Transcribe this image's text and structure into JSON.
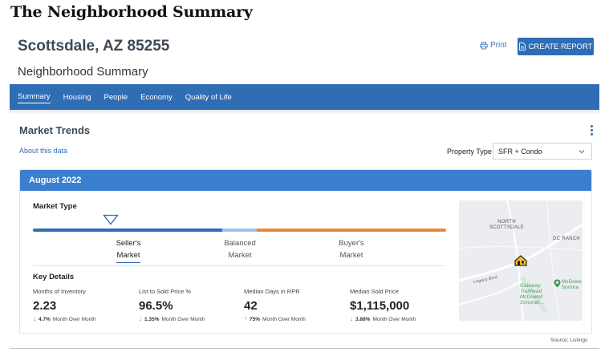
{
  "page": {
    "heading": "The Neighborhood Summary"
  },
  "header": {
    "location": "Scottsdale, AZ 85255",
    "print_label": "Print",
    "create_report_label": "CREATE REPORT",
    "subtitle": "Neighborhood Summary"
  },
  "nav": {
    "items": [
      "Summary",
      "Housing",
      "People",
      "Economy",
      "Quality of Life"
    ],
    "active": "Summary"
  },
  "market_trends": {
    "title": "Market Trends",
    "about_link": "About this data",
    "property_type_label": "Property Type",
    "property_type_value": "SFR + Condo"
  },
  "card": {
    "month": "August 2022",
    "market_type_label": "Market Type",
    "market_labels": {
      "sellers_line1": "Seller's",
      "sellers_line2": "Market",
      "balanced_line1": "Balanced",
      "balanced_line2": "Market",
      "buyers_line1": "Buyer's",
      "buyers_line2": "Market"
    },
    "selected_market": "Seller's Market",
    "key_details_label": "Key Details",
    "stats": [
      {
        "label": "Months of Inventory",
        "value": "2.23",
        "direction": "down",
        "change": "4.7%",
        "period": "Month Over Month"
      },
      {
        "label": "List to Sold Price %",
        "value": "96.5%",
        "direction": "down",
        "change": "1.35%",
        "period": "Month Over Month"
      },
      {
        "label": "Median Days in RPR",
        "value": "42",
        "direction": "up",
        "change": "75%",
        "period": "Month Over Month"
      },
      {
        "label": "Median Sold Price",
        "value": "$1,115,000",
        "direction": "down",
        "change": "3.88%",
        "period": "Month Over Month"
      }
    ]
  },
  "map": {
    "labels": {
      "north_line1": "NORTH",
      "north_line2": "SCOTTSDALE",
      "dc_ranch": "DC RANCH",
      "legacy": "Legacy Blvd",
      "gateway_line1": "Gateway",
      "gateway_line2": "Trailhead",
      "gateway_line3": "McDowell",
      "gateway_line4": "Sonoran...",
      "mcdowell_line1": "McDowe",
      "mcdowell_line2": "Sonora"
    }
  },
  "footer": {
    "source": "Source: Listings"
  },
  "colors": {
    "primary": "#2f6db5",
    "header_blue": "#3a7ed0",
    "sellers": "#2f6db5",
    "balanced": "#9cc4ef",
    "buyers": "#e58a3c",
    "down": "#d6532c",
    "up": "#3a9b5c"
  }
}
